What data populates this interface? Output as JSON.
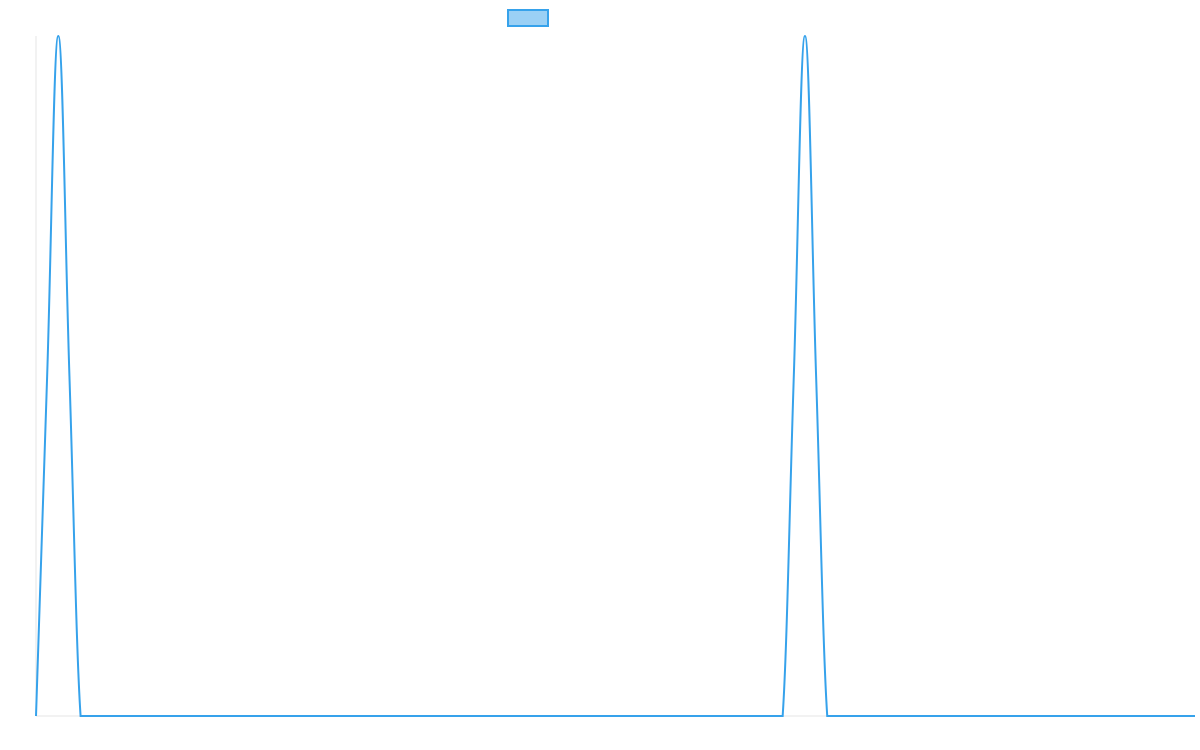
{
  "chart_data": {
    "type": "line",
    "categories": [
      null,
      null,
      null,
      null,
      null,
      null,
      null,
      null,
      null,
      null,
      null,
      null,
      null,
      null,
      null,
      null,
      null,
      null,
      null,
      null,
      null,
      null,
      null,
      null,
      null,
      null,
      null,
      null,
      null,
      null,
      null,
      null,
      null,
      null,
      null,
      null,
      null,
      null,
      null,
      null,
      null,
      null,
      null,
      null,
      null,
      null,
      null,
      null,
      null,
      null,
      null,
      null,
      null,
      null,
      null,
      null,
      null,
      null,
      null,
      null,
      null,
      null,
      null,
      null,
      null,
      null,
      null,
      null,
      null,
      null,
      null,
      null,
      null,
      null,
      null,
      null,
      null,
      null,
      null,
      null,
      null,
      null,
      null,
      null,
      null,
      null,
      null,
      null,
      null,
      null,
      null,
      null,
      null,
      null,
      null,
      null,
      null,
      null,
      null,
      null,
      null,
      null,
      null,
      null,
      null
    ],
    "series": [
      {
        "color": "#36a2eb",
        "fill": "#9ad0f5",
        "values": [
          0,
          50,
          100,
          50,
          0,
          0,
          0,
          0,
          0,
          0,
          0,
          0,
          0,
          0,
          0,
          0,
          0,
          0,
          0,
          0,
          0,
          0,
          0,
          0,
          0,
          0,
          0,
          0,
          0,
          0,
          0,
          0,
          0,
          0,
          0,
          0,
          0,
          0,
          0,
          0,
          0,
          0,
          0,
          0,
          0,
          0,
          0,
          0,
          0,
          0,
          0,
          0,
          0,
          0,
          0,
          0,
          0,
          0,
          0,
          0,
          0,
          0,
          0,
          0,
          0,
          0,
          0,
          0,
          50,
          100,
          50,
          0,
          0,
          0,
          0,
          0,
          0,
          0,
          0,
          0,
          0,
          0,
          0,
          0,
          0,
          0,
          0,
          0,
          0,
          0,
          0,
          0,
          0,
          0,
          0,
          0,
          0,
          0,
          0,
          0,
          0,
          0,
          0,
          0,
          0
        ]
      }
    ],
    "ylim": [
      0,
      100
    ],
    "legend": "top"
  }
}
